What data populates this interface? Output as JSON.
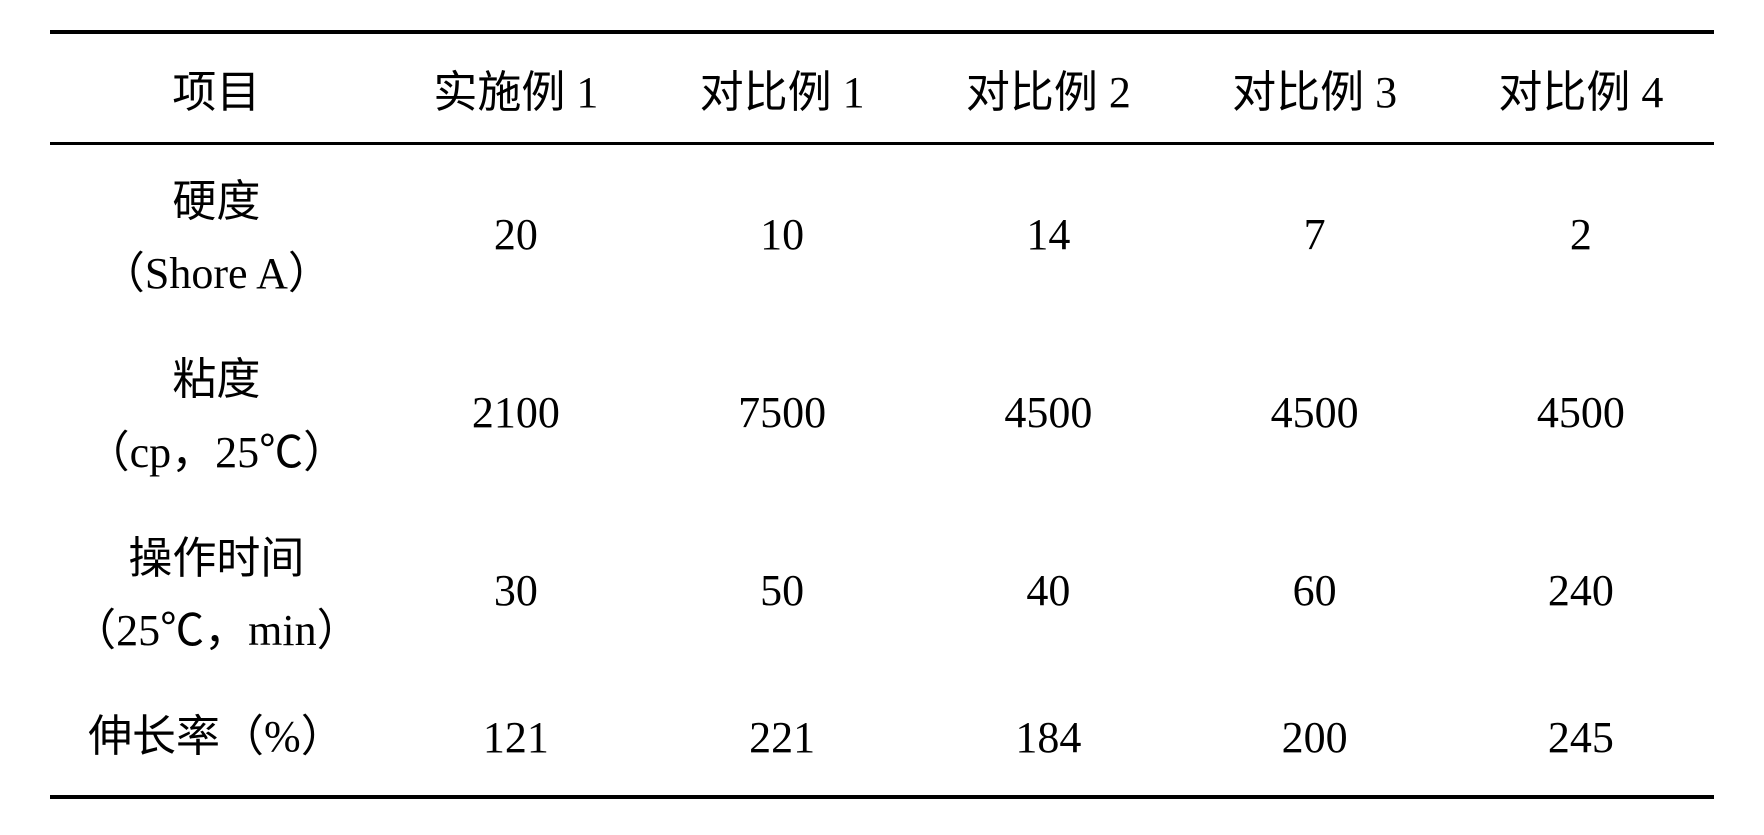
{
  "table": {
    "columns": [
      "项目",
      "实施例 1",
      "对比例 1",
      "对比例 2",
      "对比例 3",
      "对比例 4"
    ],
    "rows": [
      {
        "label_main": "硬度",
        "label_sub": "（Shore A）",
        "values": [
          "20",
          "10",
          "14",
          "7",
          "2"
        ]
      },
      {
        "label_main": "粘度",
        "label_sub": "（cp，25℃）",
        "values": [
          "2100",
          "7500",
          "4500",
          "4500",
          "4500"
        ]
      },
      {
        "label_main": "操作时间",
        "label_sub": "（25℃，min）",
        "values": [
          "30",
          "50",
          "40",
          "60",
          "240"
        ]
      },
      {
        "label_main": "伸长率（%）",
        "label_sub": "",
        "values": [
          "121",
          "221",
          "184",
          "200",
          "245"
        ]
      }
    ],
    "styling": {
      "background_color": "#ffffff",
      "text_color": "#000000",
      "border_color": "#000000",
      "font_size": 44,
      "border_top_width": 4,
      "border_header_width": 3,
      "border_bottom_width": 4
    }
  }
}
